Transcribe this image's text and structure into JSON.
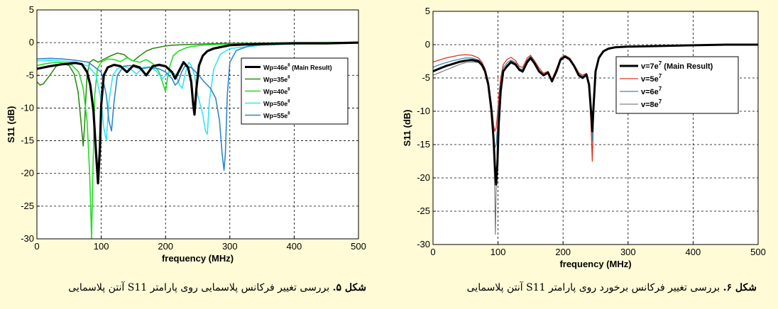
{
  "figures": [
    {
      "caption_prefix": "شکل ۵.",
      "caption_text": "بررسی تغییر فرکانس پلاسمایی روی پارامتر S11 آنتن پلاسمایی"
    },
    {
      "caption_prefix": "شکل ۶.",
      "caption_text": "بررسی تغییر فرکانس برخورد روی پارامتر S11 آنتن پلاسمایی"
    }
  ],
  "chart_data": [
    {
      "type": "line",
      "xlabel": "frequency (MHz)",
      "ylabel": "S11 (dB)",
      "xlim": [
        0,
        500
      ],
      "ylim": [
        -30,
        5
      ],
      "xticks": [
        "0",
        "100",
        "200",
        "300",
        "400",
        "500"
      ],
      "yticks": [
        "5",
        "0",
        "-5",
        "-10",
        "-15",
        "-20",
        "-25",
        "-30"
      ],
      "grid": true,
      "legend_position": "top-right",
      "series": [
        {
          "name": "Wp=46e",
          "sup": "8",
          "suffix": " (Main Result)",
          "color": "#000000",
          "width": 3.2,
          "x": [
            0,
            20,
            40,
            60,
            70,
            78,
            83,
            88,
            92,
            95,
            98,
            100,
            104,
            110,
            120,
            130,
            140,
            150,
            160,
            170,
            180,
            190,
            200,
            210,
            215,
            220,
            228,
            235,
            240,
            243,
            245,
            248,
            252,
            258,
            265,
            275,
            285,
            300,
            320,
            350,
            400,
            450,
            500
          ],
          "y": [
            -4.0,
            -3.6,
            -3.3,
            -3.1,
            -3.3,
            -4.5,
            -6.5,
            -10.5,
            -17.0,
            -21.5,
            -16.0,
            -9.5,
            -5.0,
            -3.8,
            -3.4,
            -3.6,
            -4.5,
            -3.5,
            -3.8,
            -5.0,
            -3.6,
            -3.4,
            -3.6,
            -4.5,
            -5.5,
            -4.5,
            -3.0,
            -3.8,
            -6.0,
            -9.5,
            -11.0,
            -7.0,
            -3.5,
            -2.0,
            -1.3,
            -0.9,
            -0.7,
            -0.4,
            -0.3,
            -0.2,
            -0.1,
            -0.1,
            0.0
          ]
        },
        {
          "name": "Wp=35e",
          "sup": "8",
          "suffix": "",
          "color": "#2e8b14",
          "width": 1.6,
          "x": [
            0,
            5,
            10,
            20,
            30,
            40,
            50,
            58,
            64,
            68,
            72,
            74,
            76,
            78,
            82,
            88,
            95,
            105,
            115,
            125,
            135,
            145,
            150,
            160,
            170,
            180,
            190,
            200,
            210,
            230,
            260,
            300,
            350,
            400,
            450,
            500
          ],
          "y": [
            -6.0,
            -6.5,
            -6.3,
            -5.0,
            -3.6,
            -3.2,
            -3.5,
            -4.8,
            -7.5,
            -11.5,
            -15.8,
            -13.0,
            -8.5,
            -5.0,
            -3.0,
            -2.6,
            -3.0,
            -2.5,
            -2.0,
            -1.6,
            -1.8,
            -2.6,
            -2.8,
            -2.0,
            -1.3,
            -0.9,
            -0.7,
            -0.5,
            -0.4,
            -0.3,
            -0.2,
            -0.1,
            -0.1,
            0.0,
            0.0,
            0.0
          ]
        },
        {
          "name": "Wp=40e",
          "sup": "8",
          "suffix": "",
          "color": "#22dd22",
          "width": 1.6,
          "x": [
            0,
            15,
            30,
            45,
            55,
            65,
            72,
            78,
            82,
            85,
            87,
            90,
            94,
            100,
            110,
            120,
            130,
            140,
            150,
            160,
            170,
            180,
            190,
            195,
            200,
            203,
            207,
            212,
            220,
            232,
            240,
            255,
            280,
            300,
            350,
            400,
            450,
            500
          ],
          "y": [
            -3.5,
            -3.2,
            -3.0,
            -3.1,
            -3.5,
            -4.5,
            -7.0,
            -12.0,
            -20.0,
            -30.0,
            -20.0,
            -8.0,
            -4.0,
            -3.0,
            -2.5,
            -2.6,
            -2.9,
            -2.3,
            -2.8,
            -3.0,
            -2.6,
            -3.2,
            -4.5,
            -6.0,
            -7.5,
            -5.5,
            -3.5,
            -2.0,
            -1.3,
            -0.8,
            -0.6,
            -0.4,
            -0.3,
            -0.2,
            -0.1,
            -0.1,
            0.0,
            0.0
          ]
        },
        {
          "name": "Wp=50e",
          "sup": "8",
          "suffix": "",
          "color": "#33e6f2",
          "width": 1.6,
          "x": [
            0,
            20,
            40,
            60,
            80,
            92,
            100,
            104,
            108,
            112,
            118,
            125,
            135,
            145,
            155,
            165,
            175,
            185,
            195,
            205,
            215,
            222,
            226,
            230,
            236,
            240,
            245,
            250,
            258,
            262,
            265,
            268,
            275,
            285,
            300,
            350,
            400,
            450,
            500
          ],
          "y": [
            -2.8,
            -2.7,
            -2.8,
            -3.0,
            -3.6,
            -5.0,
            -9.0,
            -13.0,
            -15.0,
            -9.0,
            -5.0,
            -4.0,
            -3.6,
            -4.0,
            -4.8,
            -3.8,
            -3.7,
            -4.3,
            -5.5,
            -4.5,
            -4.8,
            -6.5,
            -7.0,
            -5.0,
            -3.0,
            -3.5,
            -5.0,
            -8.0,
            -11.0,
            -13.5,
            -14.0,
            -9.0,
            -4.0,
            -1.8,
            -0.9,
            -0.4,
            -0.2,
            -0.1,
            0.0
          ]
        },
        {
          "name": "Wp=55e",
          "sup": "8",
          "suffix": "",
          "color": "#2f86c8",
          "width": 1.6,
          "x": [
            0,
            20,
            40,
            60,
            80,
            100,
            108,
            112,
            116,
            120,
            125,
            135,
            145,
            160,
            175,
            190,
            200,
            210,
            215,
            220,
            225,
            230,
            240,
            250,
            260,
            270,
            278,
            284,
            288,
            291,
            293,
            296,
            300,
            310,
            330,
            350,
            400,
            450,
            500
          ],
          "y": [
            -2.5,
            -2.4,
            -2.5,
            -2.7,
            -3.0,
            -4.5,
            -8.0,
            -12.0,
            -13.5,
            -9.0,
            -5.0,
            -3.6,
            -3.5,
            -4.0,
            -3.8,
            -4.0,
            -4.5,
            -5.5,
            -6.5,
            -6.0,
            -4.5,
            -3.6,
            -3.8,
            -4.8,
            -6.0,
            -7.0,
            -8.5,
            -12.0,
            -17.0,
            -19.5,
            -17.0,
            -8.0,
            -3.0,
            -1.2,
            -0.5,
            -0.3,
            -0.2,
            -0.1,
            0.0
          ]
        }
      ]
    },
    {
      "type": "line",
      "xlabel": "frequency (MHz)",
      "ylabel": "S11 (dB)",
      "xlim": [
        0,
        500
      ],
      "ylim": [
        -30,
        5
      ],
      "xticks": [
        "0",
        "100",
        "200",
        "300",
        "400",
        "500"
      ],
      "yticks": [
        "5",
        "0",
        "-5",
        "-10",
        "-15",
        "-20",
        "-25",
        "-30"
      ],
      "grid": true,
      "legend_position": "right",
      "series": [
        {
          "name": "v=7e",
          "sup": "7",
          "suffix": " (Main Result)",
          "color": "#000000",
          "width": 3.0,
          "x": [
            0,
            10,
            20,
            30,
            40,
            50,
            60,
            70,
            75,
            80,
            85,
            90,
            93,
            95,
            97,
            99,
            101,
            104,
            108,
            114,
            120,
            127,
            133,
            138,
            145,
            150,
            156,
            163,
            170,
            177,
            183,
            190,
            196,
            203,
            210,
            217,
            224,
            230,
            236,
            240,
            243,
            245,
            247,
            250,
            255,
            262,
            270,
            280,
            300,
            350,
            400,
            450,
            500
          ],
          "y": [
            -4.0,
            -3.6,
            -3.2,
            -2.9,
            -2.6,
            -2.4,
            -2.3,
            -2.5,
            -3.0,
            -4.0,
            -6.0,
            -10.0,
            -14.0,
            -18.0,
            -21.0,
            -18.0,
            -12.0,
            -7.0,
            -4.0,
            -3.2,
            -2.6,
            -3.0,
            -3.8,
            -4.0,
            -2.6,
            -2.0,
            -2.8,
            -4.0,
            -4.6,
            -4.2,
            -5.5,
            -4.0,
            -2.3,
            -1.8,
            -2.2,
            -3.2,
            -4.6,
            -5.0,
            -4.5,
            -6.0,
            -10.0,
            -13.0,
            -9.0,
            -4.0,
            -2.0,
            -1.0,
            -0.6,
            -0.4,
            -0.3,
            -0.2,
            -0.1,
            0.0,
            0.0
          ]
        },
        {
          "name": "v=5e",
          "sup": "7",
          "suffix": "",
          "color": "#dd3322",
          "width": 1.3,
          "x": [
            0,
            10,
            20,
            30,
            40,
            50,
            60,
            70,
            75,
            80,
            85,
            90,
            93,
            95,
            97,
            99,
            101,
            104,
            108,
            114,
            120,
            127,
            133,
            138,
            145,
            150,
            156,
            163,
            170,
            177,
            183,
            190,
            196,
            203,
            210,
            217,
            224,
            230,
            236,
            240,
            243,
            245,
            247,
            250,
            255,
            262,
            270,
            280,
            300,
            350,
            400,
            450,
            500
          ],
          "y": [
            -2.6,
            -2.3,
            -2.0,
            -1.8,
            -1.6,
            -1.5,
            -1.6,
            -2.0,
            -2.6,
            -3.6,
            -5.5,
            -9.0,
            -12.0,
            -13.0,
            -12.5,
            -10.5,
            -8.0,
            -5.0,
            -3.0,
            -2.2,
            -1.9,
            -2.4,
            -3.3,
            -3.4,
            -2.0,
            -1.6,
            -2.4,
            -3.5,
            -4.3,
            -4.0,
            -5.2,
            -3.6,
            -2.0,
            -1.6,
            -2.0,
            -3.0,
            -4.2,
            -4.6,
            -4.3,
            -6.0,
            -12.0,
            -17.5,
            -10.0,
            -4.0,
            -1.8,
            -0.9,
            -0.5,
            -0.4,
            -0.3,
            -0.2,
            -0.1,
            0.0,
            0.0
          ]
        },
        {
          "name": "v=6e",
          "sup": "7",
          "suffix": "",
          "color": "#3b8bb0",
          "width": 1.3,
          "x": [
            0,
            10,
            20,
            30,
            40,
            50,
            60,
            70,
            75,
            80,
            85,
            90,
            93,
            95,
            97,
            99,
            101,
            104,
            108,
            114,
            120,
            127,
            133,
            138,
            145,
            150,
            156,
            163,
            170,
            177,
            183,
            190,
            196,
            203,
            210,
            217,
            224,
            230,
            236,
            240,
            243,
            245,
            247,
            250,
            255,
            262,
            270,
            280,
            300,
            350,
            400,
            450,
            500
          ],
          "y": [
            -3.4,
            -3.0,
            -2.7,
            -2.4,
            -2.2,
            -2.0,
            -2.0,
            -2.3,
            -2.8,
            -3.8,
            -5.8,
            -9.5,
            -13.0,
            -15.5,
            -15.0,
            -12.5,
            -9.5,
            -6.0,
            -3.5,
            -2.7,
            -2.3,
            -2.7,
            -3.6,
            -3.7,
            -2.3,
            -1.8,
            -2.6,
            -3.8,
            -4.5,
            -4.1,
            -5.4,
            -3.8,
            -2.1,
            -1.7,
            -2.1,
            -3.1,
            -4.4,
            -4.8,
            -4.4,
            -6.0,
            -11.0,
            -14.5,
            -9.5,
            -4.0,
            -1.9,
            -1.0,
            -0.6,
            -0.4,
            -0.3,
            -0.2,
            -0.1,
            0.0,
            0.0
          ]
        },
        {
          "name": "v=8e",
          "sup": "7",
          "suffix": "",
          "color": "#666666",
          "width": 1.0,
          "x": [
            0,
            10,
            20,
            30,
            40,
            50,
            60,
            70,
            75,
            80,
            85,
            90,
            93,
            95,
            96,
            97,
            98,
            99,
            101,
            104,
            108,
            114,
            120,
            127,
            133,
            138,
            145,
            150,
            156,
            163,
            170,
            177,
            183,
            190,
            196,
            203,
            210,
            217,
            224,
            230,
            236,
            240,
            243,
            245,
            247,
            250,
            255,
            262,
            270,
            280,
            300,
            350,
            400,
            450,
            500
          ],
          "y": [
            -4.6,
            -4.2,
            -3.8,
            -3.4,
            -3.0,
            -2.7,
            -2.6,
            -2.7,
            -3.2,
            -4.2,
            -6.3,
            -10.5,
            -15.0,
            -22.0,
            -28.5,
            -22.0,
            -18.0,
            -14.0,
            -10.0,
            -6.5,
            -4.2,
            -3.4,
            -2.8,
            -3.1,
            -3.9,
            -4.2,
            -2.8,
            -2.2,
            -2.9,
            -4.1,
            -4.7,
            -4.3,
            -5.6,
            -4.1,
            -2.4,
            -1.9,
            -2.3,
            -3.3,
            -4.7,
            -5.1,
            -4.6,
            -6.0,
            -9.5,
            -12.0,
            -8.5,
            -4.0,
            -2.0,
            -1.0,
            -0.6,
            -0.4,
            -0.3,
            -0.2,
            -0.1,
            0.0,
            0.0
          ]
        }
      ]
    }
  ]
}
